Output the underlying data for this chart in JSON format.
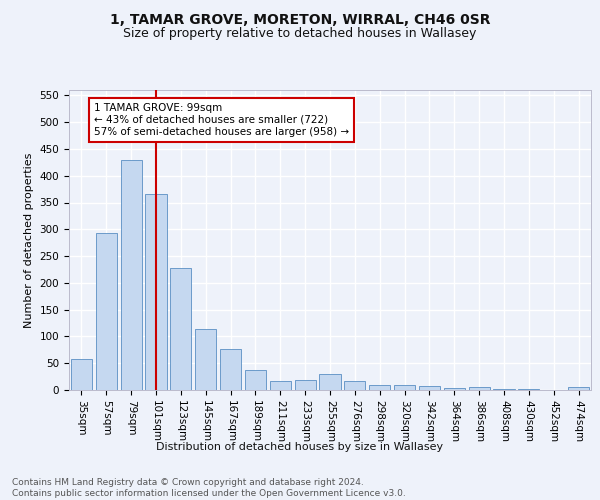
{
  "title": "1, TAMAR GROVE, MORETON, WIRRAL, CH46 0SR",
  "subtitle": "Size of property relative to detached houses in Wallasey",
  "xlabel": "Distribution of detached houses by size in Wallasey",
  "ylabel": "Number of detached properties",
  "categories": [
    "35sqm",
    "57sqm",
    "79sqm",
    "101sqm",
    "123sqm",
    "145sqm",
    "167sqm",
    "189sqm",
    "211sqm",
    "233sqm",
    "255sqm",
    "276sqm",
    "298sqm",
    "320sqm",
    "342sqm",
    "364sqm",
    "386sqm",
    "408sqm",
    "430sqm",
    "452sqm",
    "474sqm"
  ],
  "values": [
    57,
    293,
    430,
    365,
    228,
    113,
    76,
    38,
    17,
    18,
    29,
    17,
    10,
    10,
    8,
    3,
    5,
    1,
    1,
    0,
    5
  ],
  "bar_color": "#c5d8f0",
  "bar_edge_color": "#5a8fc3",
  "vline_x": 3,
  "vline_color": "#cc0000",
  "annotation_text": "1 TAMAR GROVE: 99sqm\n← 43% of detached houses are smaller (722)\n57% of semi-detached houses are larger (958) →",
  "annotation_box_color": "#ffffff",
  "annotation_box_edge_color": "#cc0000",
  "ylim": [
    0,
    560
  ],
  "yticks": [
    0,
    50,
    100,
    150,
    200,
    250,
    300,
    350,
    400,
    450,
    500,
    550
  ],
  "footer_text": "Contains HM Land Registry data © Crown copyright and database right 2024.\nContains public sector information licensed under the Open Government Licence v3.0.",
  "bg_color": "#eef2fa",
  "grid_color": "#ffffff",
  "title_fontsize": 10,
  "subtitle_fontsize": 9,
  "axis_label_fontsize": 8,
  "tick_fontsize": 7.5,
  "annotation_fontsize": 7.5,
  "footer_fontsize": 6.5
}
